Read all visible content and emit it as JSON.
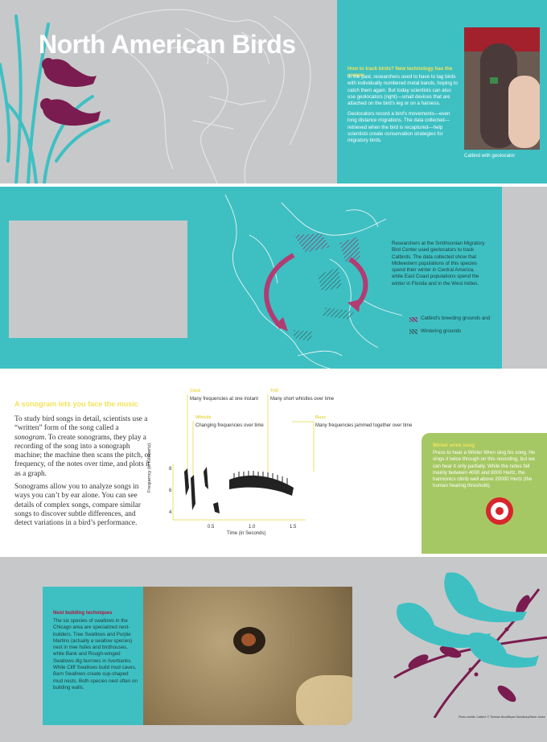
{
  "panel1": {
    "title": "North American Birds",
    "track_heading": "How to track birds? New technology has the answer",
    "track_p1": "In the past, researchers used to have to tag birds with individually numbered metal bands, hoping to catch them again. But today scientists can also use geolocators (right)—small devices that are attached on the bird's leg or on a harness.",
    "track_p2": "Geolocators record a bird's movements—even long distance migrations. The data collected—retrieved when the bird is recaptured—help scientists create conservation strategies for migratory birds.",
    "photo_caption": "Catbird with geolocator"
  },
  "panel2": {
    "research_text": "Researchers at the Smithsonian Migratory Bird Center used geolocators to track Catbirds. The data collected show that Midwestern populations of this species spend their winter in Central America, while East Coast populations spend the winter in Florida and in the West Indies.",
    "legend_breeding": "Catbird's breeding grounds and",
    "legend_wintering": "Wintering grounds"
  },
  "panel3": {
    "heading": "A sonogram lets you face the music",
    "para1_a": "To study bird songs in detail, scientists use a “written” form of the song called a ",
    "para1_em": "sonogram",
    "para1_b": ". To create sonograms, they play a recording of the song into a sonograph machine; the machine then scans the pitch, or frequency, of the notes over time, and plots it as a graph.",
    "para2": "Sonograms allow you to analyze songs in ways you can’t by ear alone. You can see details of complex songs, compare similar songs to discover subtle differences, and detect variations in a bird’s performance.",
    "annotations": [
      {
        "head": "Click",
        "text": "Many frequencies at one instant"
      },
      {
        "head": "Trill",
        "text": "Many short whistles over time"
      },
      {
        "head": "Whistle",
        "text": "Changing frequencies over time"
      },
      {
        "head": "Buzz",
        "text": "Many frequencies jammed together over time"
      }
    ],
    "y_label": "Frequency (in Kilohertz)",
    "y_ticks": [
      "8",
      "6",
      "4"
    ],
    "x_label": "Time (in Seconds)",
    "x_ticks": [
      "0.5",
      "1.0",
      "1.5"
    ],
    "winter_heading": "Winter wren song",
    "winter_text": "Press to hear a Winter Wren sing his song. He sings it twice through on this recording, but we can hear it only partially. While the notes fall mainly between 4000 and 8000 Hertz, the harmonics climb well above 20000 Hertz (the human hearing threshold)."
  },
  "panel4": {
    "nest_heading": "Nest building techniques",
    "nest_text": "The six species of swallows in the Chicago area are specialized nest-builders. Tree Swallows and Purple Martins (actually a swallow species) nest in tree holes and birdhouses, while Bank and Rough-winged Swallows dig burrows in riverbanks. While Cliff Swallows build mud caves, Barn Swallows create cup-shaped mud nests. Both species nest often on building walls.",
    "photo_credit": "Photo credits: Catbird: © Thomas Nicol/Bryan Stuchbury/Steve Jones"
  },
  "colors": {
    "teal": "#3ec0c3",
    "plum": "#7a1c4f",
    "green": "#a6c864",
    "yellow": "#f3e35a",
    "gray": "#c7c8ca"
  }
}
